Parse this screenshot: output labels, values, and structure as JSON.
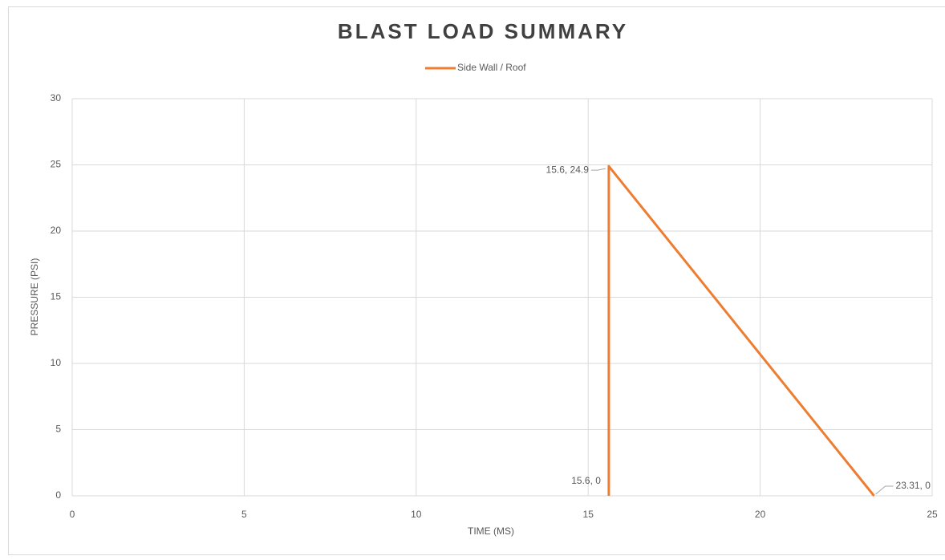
{
  "chart_data": {
    "type": "line",
    "title": "BLAST LOAD SUMMARY",
    "x_label": "TIME (MS)",
    "y_label": "PRESSURE (PSI)",
    "x": [
      15.6,
      15.6,
      23.31
    ],
    "series": [
      {
        "name": "Side Wall / Roof",
        "color": "#ed7d31",
        "values": [
          0,
          24.9,
          0
        ],
        "value_labels": [
          "15.6, 0",
          "15.6, 24.9",
          "23.31, 0"
        ]
      }
    ],
    "xlim": [
      0,
      25
    ],
    "xticks": [
      0,
      5,
      10,
      15,
      20,
      25
    ],
    "ylim": [
      0,
      30
    ],
    "yticks": [
      0,
      5,
      10,
      15,
      20,
      25,
      30
    ],
    "grid": true,
    "legend": "top"
  }
}
